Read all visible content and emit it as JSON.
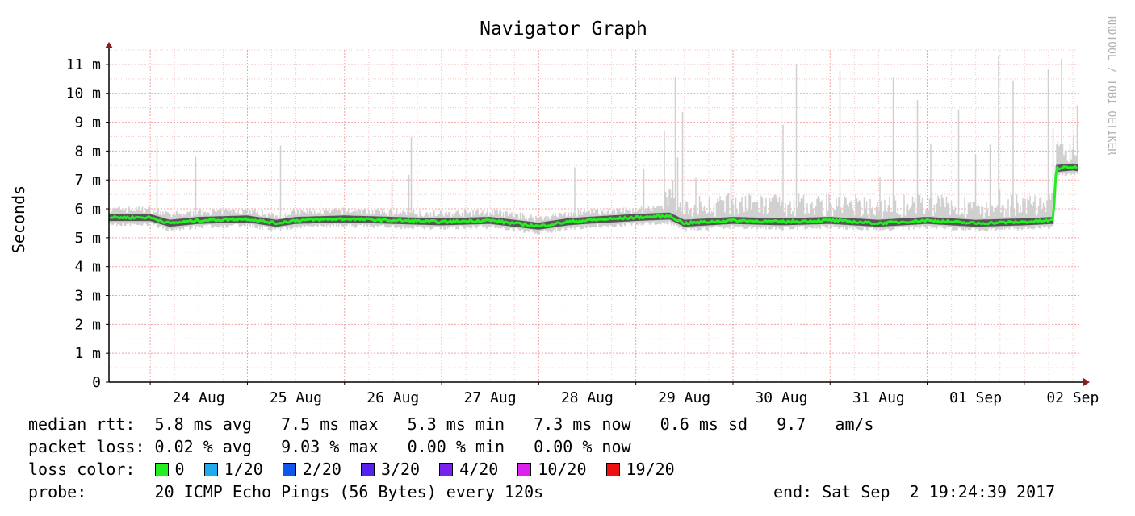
{
  "chart_data": {
    "type": "line",
    "title": "Navigator Graph",
    "ylabel": "Seconds",
    "xlabel": "",
    "watermark": "RRDTOOL / TOBI OETIKER",
    "ylim": [
      0,
      11.5
    ],
    "y_ticks": [
      "0",
      "1 m",
      "2 m",
      "3 m",
      "4 m",
      "5 m",
      "6 m",
      "7 m",
      "8 m",
      "9 m",
      "10 m",
      "11 m"
    ],
    "y_tick_values": [
      0,
      1,
      2,
      3,
      4,
      5,
      6,
      7,
      8,
      9,
      10,
      11
    ],
    "x_ticks": [
      "24 Aug",
      "25 Aug",
      "26 Aug",
      "27 Aug",
      "28 Aug",
      "29 Aug",
      "30 Aug",
      "31 Aug",
      "01 Sep",
      "02 Sep"
    ],
    "x_range_days": [
      22.5,
      32.0
    ],
    "grid": true,
    "series": [
      {
        "name": "median rtt",
        "color": "#22ee22",
        "x": [
          22.5,
          22.7,
          23.0,
          23.5,
          23.8,
          24.0,
          24.5,
          25.0,
          25.5,
          26.0,
          26.5,
          26.8,
          27.0,
          27.5,
          27.85,
          28.0,
          28.5,
          29.0,
          29.5,
          30.0,
          30.5,
          31.0,
          31.5,
          31.8,
          31.83,
          32.0,
          32.3,
          32.6,
          32.85,
          33.0
        ],
        "values": [
          5.7,
          5.5,
          5.6,
          5.65,
          5.5,
          5.6,
          5.65,
          5.6,
          5.55,
          5.6,
          5.4,
          5.55,
          5.6,
          5.7,
          5.75,
          5.5,
          5.6,
          5.55,
          5.6,
          5.5,
          5.6,
          5.5,
          5.55,
          5.6,
          7.4,
          7.45,
          7.3,
          7.35,
          7.45,
          7.3
        ]
      }
    ],
    "colors": {
      "grid": "#f4a0a0",
      "axis": "#000000",
      "arrow": "#8b1a1a",
      "smoke": "#d0d0d0",
      "median": "#22ee22"
    }
  },
  "stats": {
    "median_label": "median rtt:",
    "median_text": "5.8 ms avg   7.5 ms max   5.3 ms min   7.3 ms now   0.6 ms sd   9.7   am/s",
    "loss_label": "packet loss:",
    "loss_text": "0.02 % avg   9.03 % max   0.00 % min   0.00 % now",
    "loss_color_label": "loss color:",
    "loss_colors": [
      {
        "label": "0",
        "color": "#22ee22"
      },
      {
        "label": "1/20",
        "color": "#22aaee"
      },
      {
        "label": "2/20",
        "color": "#1155ee"
      },
      {
        "label": "3/20",
        "color": "#5522ee"
      },
      {
        "label": "4/20",
        "color": "#7722ee"
      },
      {
        "label": "10/20",
        "color": "#dd22ee"
      },
      {
        "label": "19/20",
        "color": "#ee1111"
      }
    ],
    "probe_label": "probe:",
    "probe_text": "20 ICMP Echo Pings (56 Bytes) every 120s",
    "end_text": "end: Sat Sep  2 19:24:39 2017"
  }
}
